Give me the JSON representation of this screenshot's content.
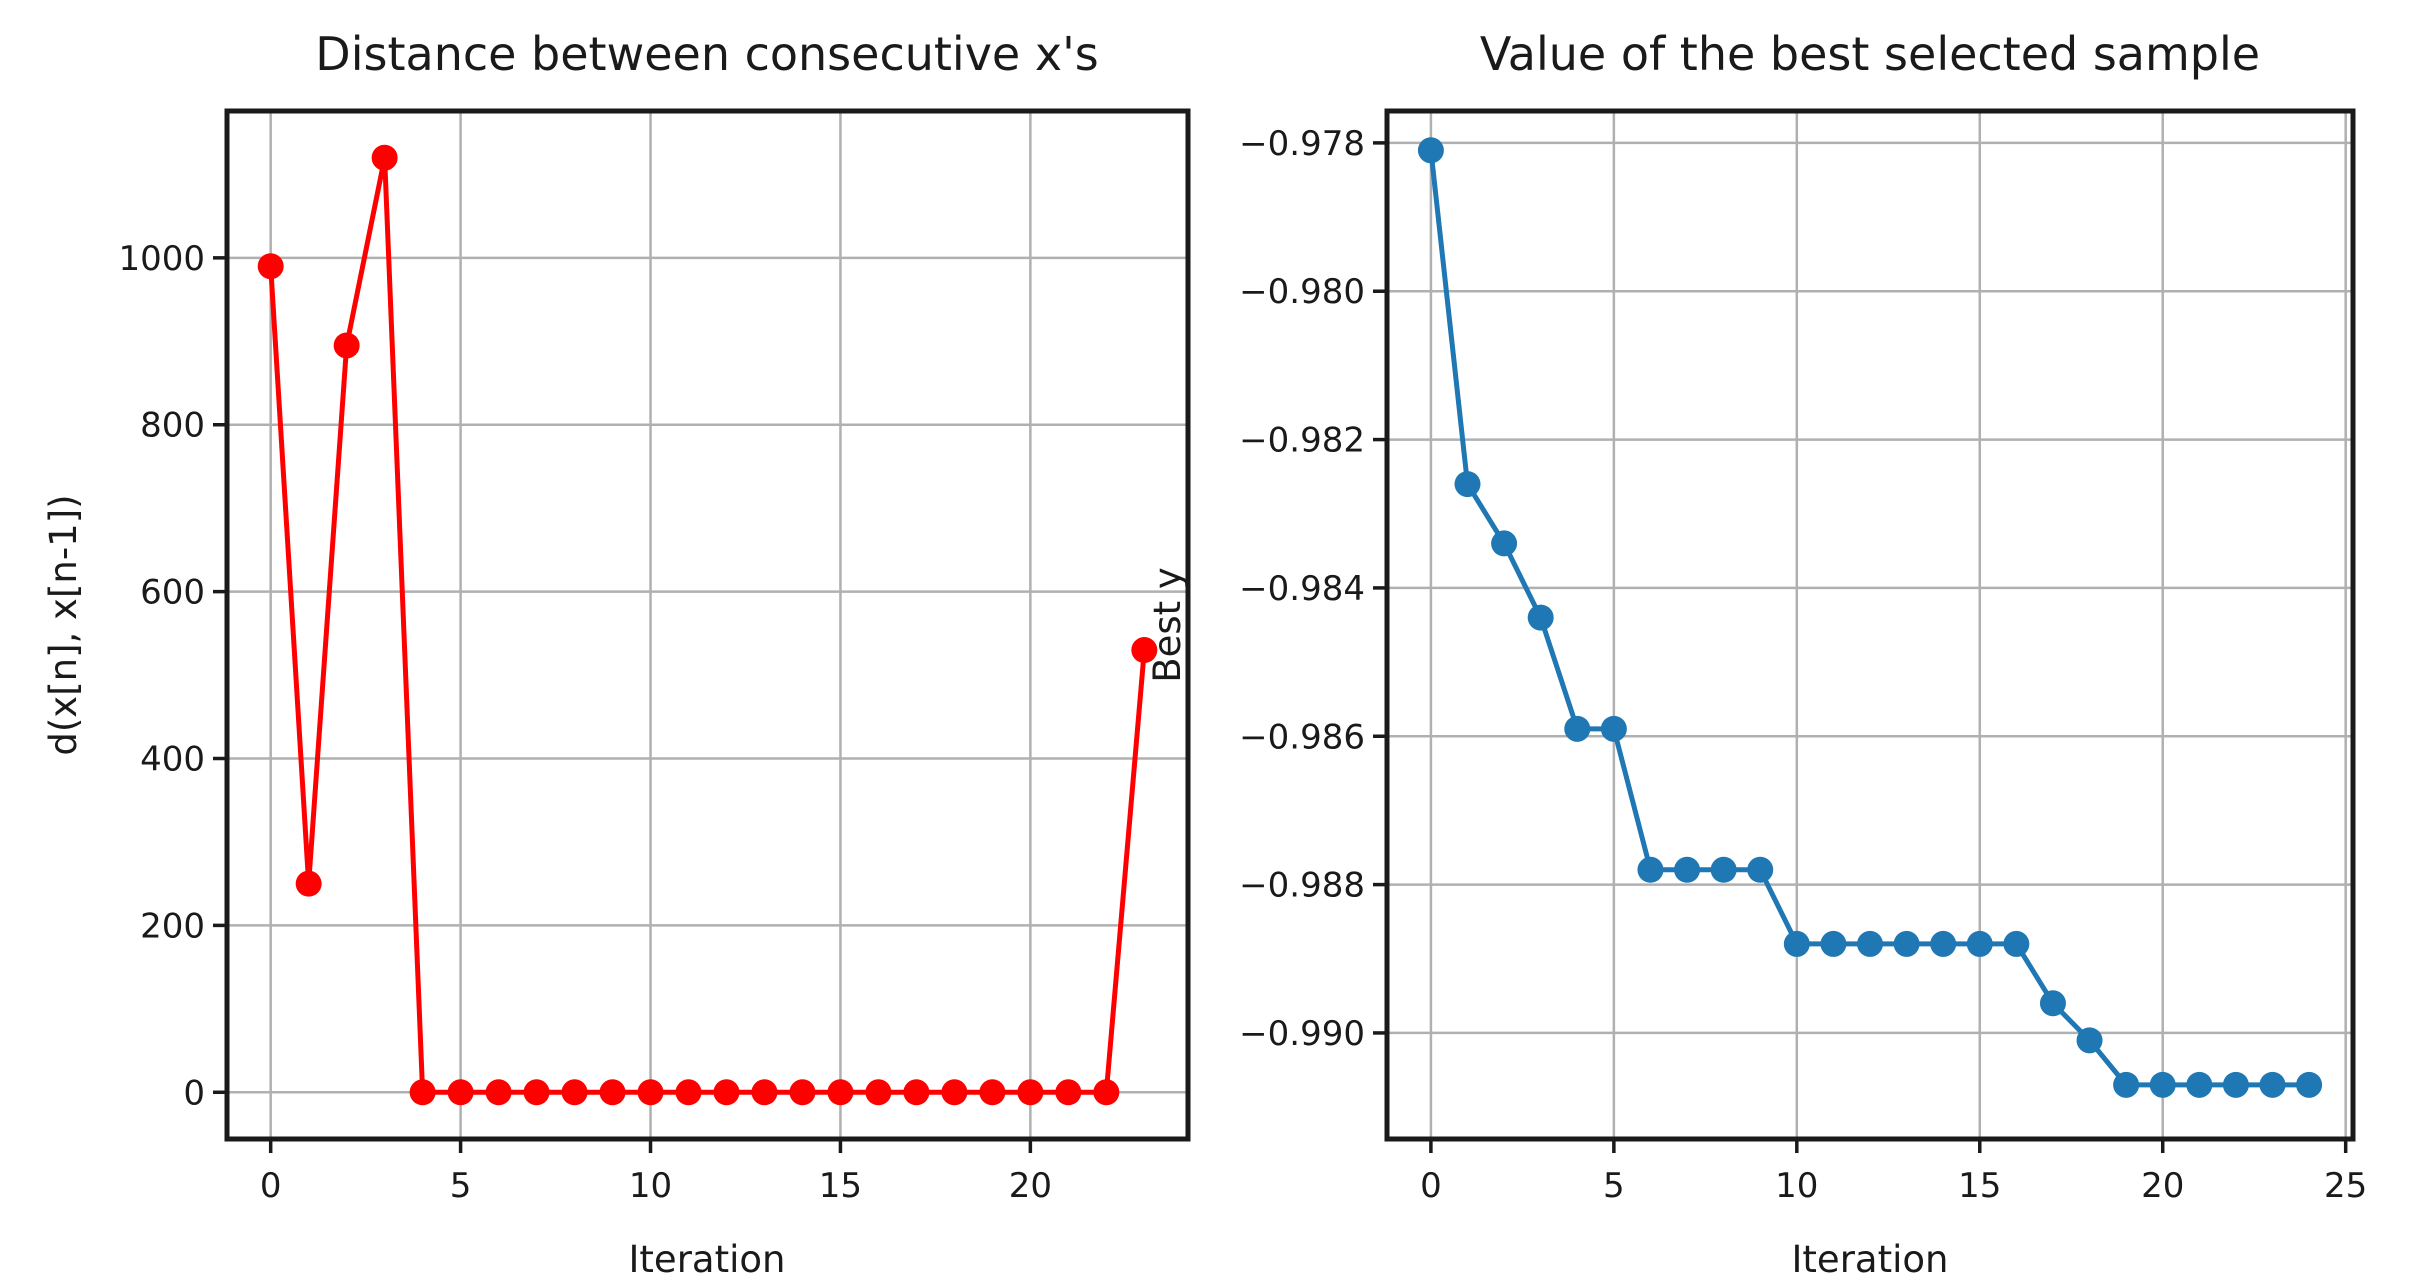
{
  "figure": {
    "background": "#ffffff",
    "text_color": "#1a1a1a",
    "grid_color": "#b0b0b0",
    "spine_color": "#1a1a1a"
  },
  "chart_data": [
    {
      "type": "line",
      "title": "Distance between consecutive x's",
      "xlabel": "Iteration",
      "ylabel": "d(x[n], x[n-1])",
      "grid": true,
      "legend": null,
      "xlim": [
        -1.15,
        24.15
      ],
      "ylim": [
        -56,
        1176
      ],
      "xticks": {
        "values": [
          0,
          5,
          10,
          15,
          20
        ],
        "labels": [
          "0",
          "5",
          "10",
          "15",
          "20"
        ]
      },
      "yticks": {
        "values": [
          0,
          200,
          400,
          600,
          800,
          1000
        ],
        "labels": [
          "0",
          "200",
          "400",
          "600",
          "800",
          "1000"
        ]
      },
      "series": [
        {
          "name": "distance-between-consecutive-x",
          "color": "#ff0000",
          "marker": "o",
          "x": [
            0,
            1,
            2,
            3,
            4,
            5,
            6,
            7,
            8,
            9,
            10,
            11,
            12,
            13,
            14,
            15,
            16,
            17,
            18,
            19,
            20,
            21,
            22,
            23
          ],
          "y": [
            990,
            250,
            895,
            1120,
            0,
            0,
            0,
            0,
            0,
            0,
            0,
            0,
            0,
            0,
            0,
            0,
            0,
            0,
            0,
            0,
            0,
            0,
            0,
            530
          ]
        }
      ]
    },
    {
      "type": "line",
      "title": "Value of the best selected sample",
      "xlabel": "Iteration",
      "ylabel": "Best y",
      "grid": true,
      "legend": null,
      "xlim": [
        -1.2,
        25.2
      ],
      "ylim": [
        -0.99143,
        -0.97757
      ],
      "xticks": {
        "values": [
          0,
          5,
          10,
          15,
          20,
          25
        ],
        "labels": [
          "0",
          "5",
          "10",
          "15",
          "20",
          "25"
        ]
      },
      "yticks": {
        "values": [
          -0.978,
          -0.98,
          -0.982,
          -0.984,
          -0.986,
          -0.988,
          -0.99
        ],
        "labels": [
          "−0.978",
          "−0.980",
          "−0.982",
          "−0.984",
          "−0.986",
          "−0.988",
          "−0.990"
        ]
      },
      "series": [
        {
          "name": "best-selected-sample-value",
          "color": "#1f77b4",
          "marker": "o",
          "x": [
            0,
            1,
            2,
            3,
            4,
            5,
            6,
            7,
            8,
            9,
            10,
            11,
            12,
            13,
            14,
            15,
            16,
            17,
            18,
            19,
            20,
            21,
            22,
            23,
            24
          ],
          "y": [
            -0.9781,
            -0.9826,
            -0.9834,
            -0.9844,
            -0.9859,
            -0.9859,
            -0.9878,
            -0.9878,
            -0.9878,
            -0.9878,
            -0.9888,
            -0.9888,
            -0.9888,
            -0.9888,
            -0.9888,
            -0.9888,
            -0.9888,
            -0.9896,
            -0.9901,
            -0.9907,
            -0.9907,
            -0.9907,
            -0.9907,
            -0.9907,
            -0.9907
          ]
        }
      ]
    }
  ]
}
